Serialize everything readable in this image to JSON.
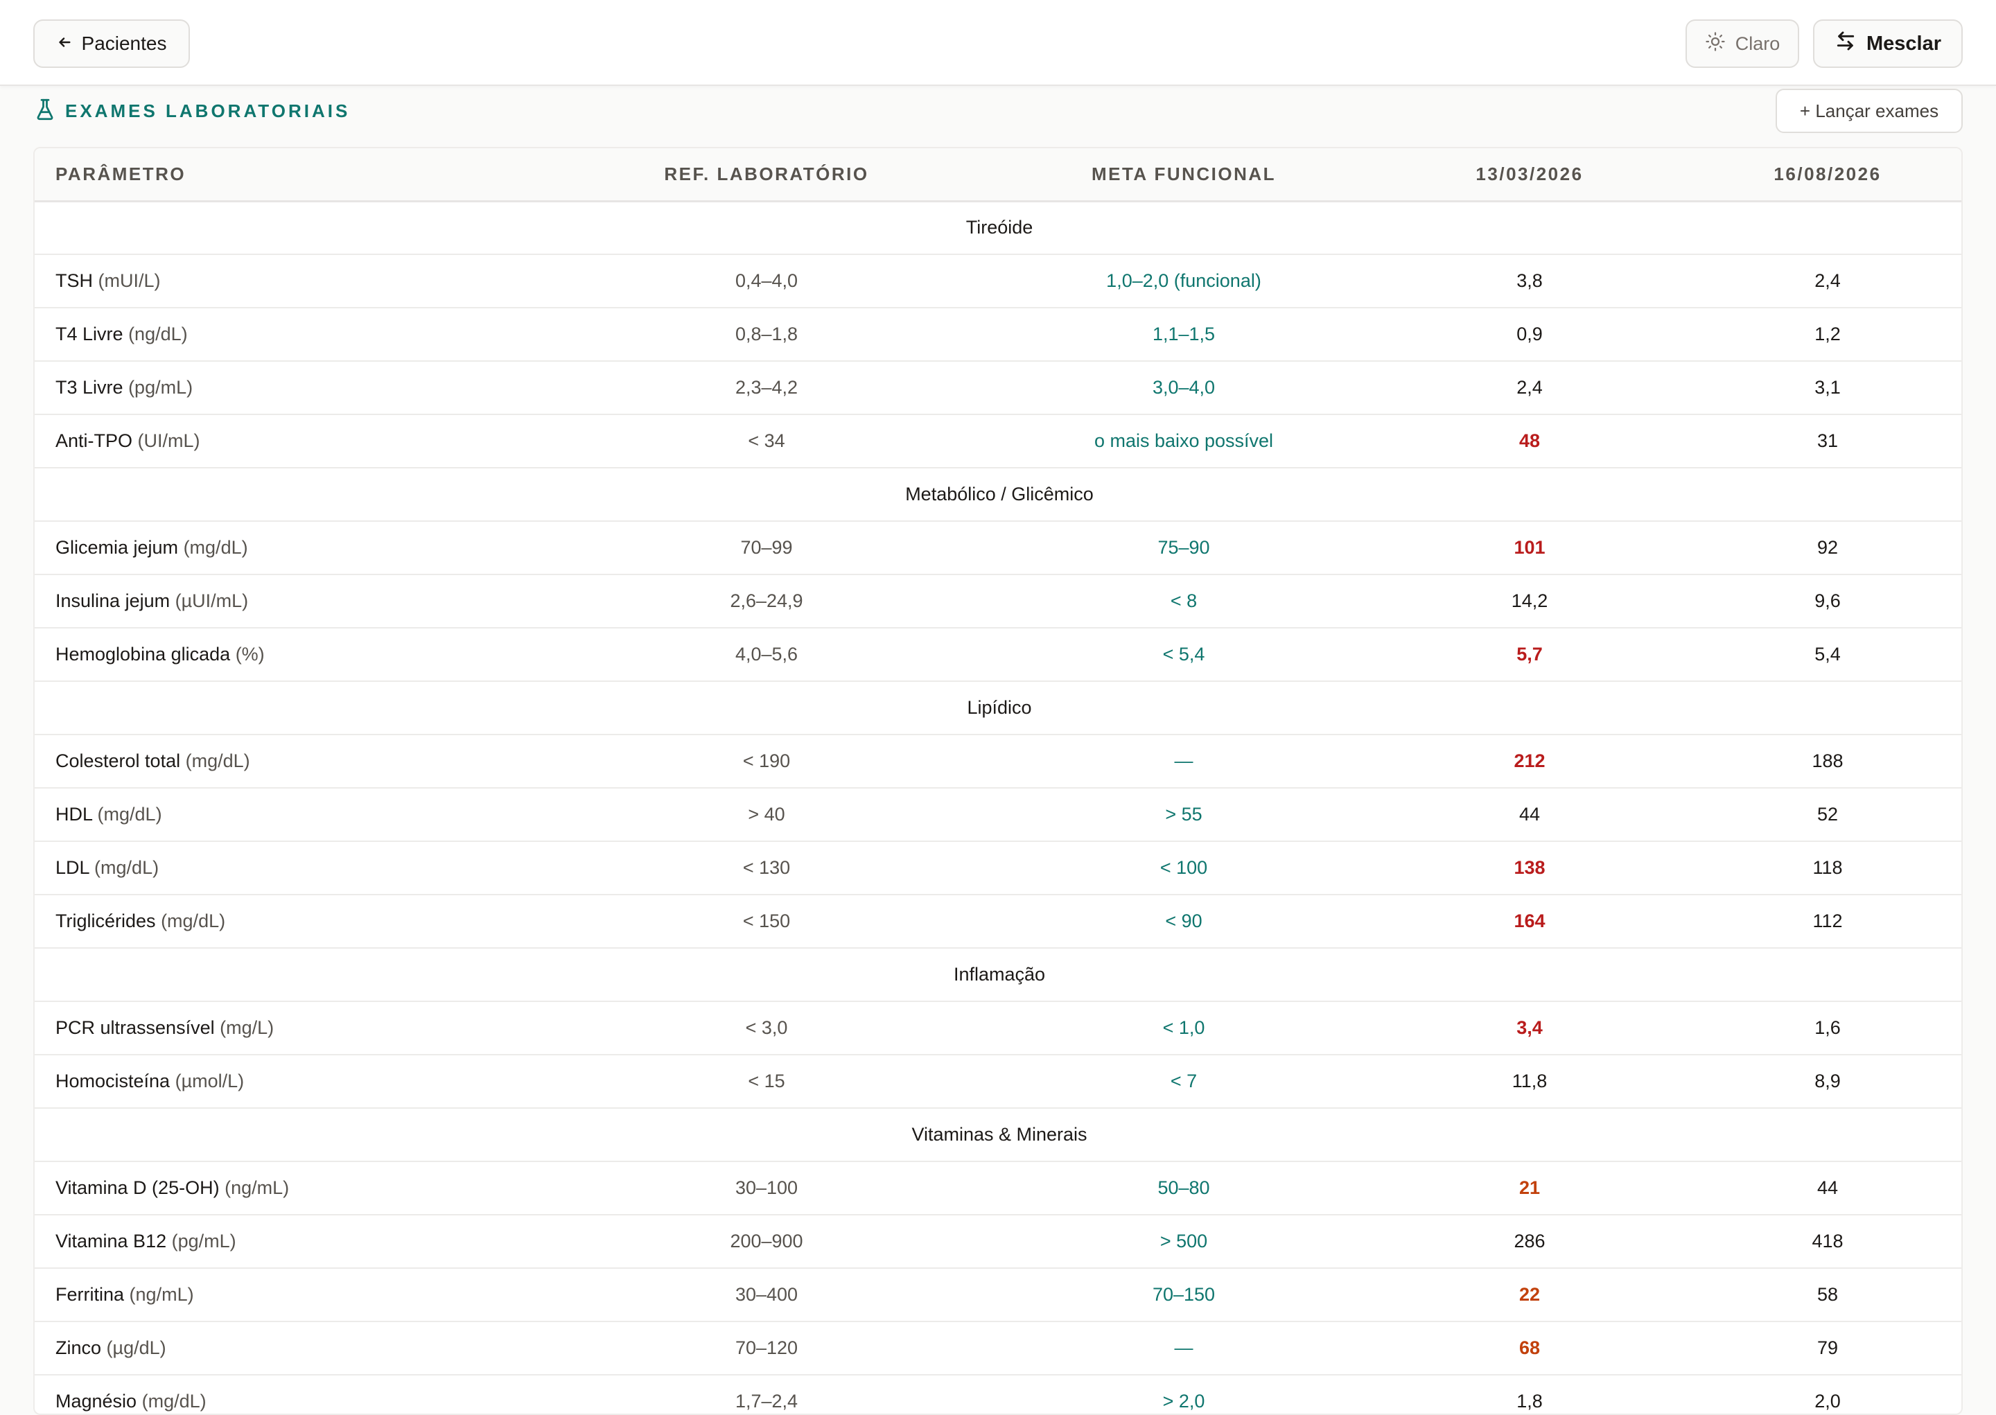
{
  "topbar": {
    "back_label": "Pacientes",
    "theme_label": "Claro",
    "merge_label": "Mesclar"
  },
  "section": {
    "title": "EXAMES LABORATORIAIS",
    "add_label": "+ Lançar exames"
  },
  "table": {
    "headers": [
      "PARÂMETRO",
      "REF. LABORATÓRIO",
      "META FUNCIONAL",
      "13/03/2026",
      "16/08/2026"
    ],
    "groups": [
      {
        "name": "Tireóide",
        "rows": [
          {
            "name": "TSH",
            "unit": "(mUI/L)",
            "ref": "0,4–4,0",
            "meta": "1,0–2,0 (funcional)",
            "v1": "3,8",
            "v1s": "",
            "v2": "2,4",
            "v2s": ""
          },
          {
            "name": "T4 Livre",
            "unit": "(ng/dL)",
            "ref": "0,8–1,8",
            "meta": "1,1–1,5",
            "v1": "0,9",
            "v1s": "",
            "v2": "1,2",
            "v2s": ""
          },
          {
            "name": "T3 Livre",
            "unit": "(pg/mL)",
            "ref": "2,3–4,2",
            "meta": "3,0–4,0",
            "v1": "2,4",
            "v1s": "",
            "v2": "3,1",
            "v2s": ""
          },
          {
            "name": "Anti-TPO",
            "unit": "(UI/mL)",
            "ref": "< 34",
            "meta": "o mais baixo possível",
            "v1": "48",
            "v1s": "high",
            "v2": "31",
            "v2s": ""
          }
        ]
      },
      {
        "name": "Metabólico / Glicêmico",
        "rows": [
          {
            "name": "Glicemia jejum",
            "unit": "(mg/dL)",
            "ref": "70–99",
            "meta": "75–90",
            "v1": "101",
            "v1s": "high",
            "v2": "92",
            "v2s": ""
          },
          {
            "name": "Insulina jejum",
            "unit": "(µUI/mL)",
            "ref": "2,6–24,9",
            "meta": "< 8",
            "v1": "14,2",
            "v1s": "",
            "v2": "9,6",
            "v2s": ""
          },
          {
            "name": "Hemoglobina glicada",
            "unit": "(%)",
            "ref": "4,0–5,6",
            "meta": "< 5,4",
            "v1": "5,7",
            "v1s": "high",
            "v2": "5,4",
            "v2s": ""
          }
        ]
      },
      {
        "name": "Lipídico",
        "rows": [
          {
            "name": "Colesterol total",
            "unit": "(mg/dL)",
            "ref": "< 190",
            "meta": "—",
            "v1": "212",
            "v1s": "high",
            "v2": "188",
            "v2s": ""
          },
          {
            "name": "HDL",
            "unit": "(mg/dL)",
            "ref": "> 40",
            "meta": "> 55",
            "v1": "44",
            "v1s": "",
            "v2": "52",
            "v2s": ""
          },
          {
            "name": "LDL",
            "unit": "(mg/dL)",
            "ref": "< 130",
            "meta": "< 100",
            "v1": "138",
            "v1s": "high",
            "v2": "118",
            "v2s": ""
          },
          {
            "name": "Triglicérides",
            "unit": "(mg/dL)",
            "ref": "< 150",
            "meta": "< 90",
            "v1": "164",
            "v1s": "high",
            "v2": "112",
            "v2s": ""
          }
        ]
      },
      {
        "name": "Inflamação",
        "rows": [
          {
            "name": "PCR ultrassensível",
            "unit": "(mg/L)",
            "ref": "< 3,0",
            "meta": "< 1,0",
            "v1": "3,4",
            "v1s": "high",
            "v2": "1,6",
            "v2s": ""
          },
          {
            "name": "Homocisteína",
            "unit": "(µmol/L)",
            "ref": "< 15",
            "meta": "< 7",
            "v1": "11,8",
            "v1s": "",
            "v2": "8,9",
            "v2s": ""
          }
        ]
      },
      {
        "name": "Vitaminas & Minerais",
        "rows": [
          {
            "name": "Vitamina D (25-OH)",
            "unit": "(ng/mL)",
            "ref": "30–100",
            "meta": "50–80",
            "v1": "21",
            "v1s": "low",
            "v2": "44",
            "v2s": ""
          },
          {
            "name": "Vitamina B12",
            "unit": "(pg/mL)",
            "ref": "200–900",
            "meta": "> 500",
            "v1": "286",
            "v1s": "",
            "v2": "418",
            "v2s": ""
          },
          {
            "name": "Ferritina",
            "unit": "(ng/mL)",
            "ref": "30–400",
            "meta": "70–150",
            "v1": "22",
            "v1s": "low",
            "v2": "58",
            "v2s": ""
          },
          {
            "name": "Zinco",
            "unit": "(µg/dL)",
            "ref": "70–120",
            "meta": "—",
            "v1": "68",
            "v1s": "low",
            "v2": "79",
            "v2s": ""
          },
          {
            "name": "Magnésio",
            "unit": "(mg/dL)",
            "ref": "1,7–2,4",
            "meta": "> 2,0",
            "v1": "1,8",
            "v1s": "",
            "v2": "2,0",
            "v2s": ""
          }
        ]
      }
    ]
  },
  "colors": {
    "accent_teal": "#0f766e",
    "flag_high": "#b91c1c",
    "flag_low": "#c2410c"
  },
  "icons": {
    "back": "arrow-left-icon",
    "theme": "sun-icon",
    "merge": "arrows-swap-icon",
    "section": "flask-icon"
  }
}
